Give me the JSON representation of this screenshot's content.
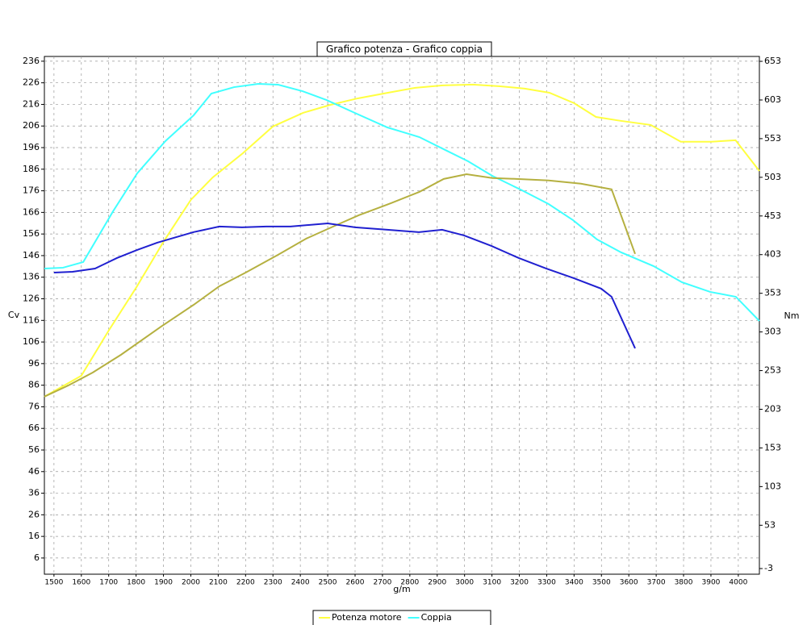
{
  "chart_data": {
    "type": "line",
    "title": "Grafico potenza - Grafico coppia",
    "x_label": "g/m",
    "y_label": "Cv",
    "y2_label": "Nm",
    "grid": true,
    "legend": "bottom",
    "xlim": [
      1465,
      4077
    ],
    "xticks": [
      1500,
      1600,
      1700,
      1800,
      1900,
      2000,
      2100,
      2200,
      2300,
      2400,
      2500,
      2600,
      2700,
      2800,
      2900,
      3000,
      3100,
      3200,
      3300,
      3400,
      3500,
      3600,
      3700,
      3800,
      3900,
      4000
    ],
    "ylim": [
      -1.5,
      238.2
    ],
    "yticks": [
      6,
      16,
      26,
      36,
      46,
      56,
      66,
      76,
      86,
      96,
      106,
      116,
      126,
      136,
      146,
      156,
      166,
      176,
      186,
      196,
      206,
      216,
      226,
      236
    ],
    "y2lim": [
      -10.3,
      659.3
    ],
    "y2ticks": [
      -3,
      53,
      103,
      153,
      203,
      253,
      303,
      353,
      403,
      453,
      503,
      553,
      603,
      653
    ],
    "series": [
      {
        "name": "Potenza motore",
        "color": "#ffff40",
        "x": [
          1465,
          1600,
          1700,
          1800,
          1900,
          2000,
          2080,
          2190,
          2300,
          2410,
          2510,
          2610,
          2720,
          2820,
          2920,
          3030,
          3130,
          3220,
          3310,
          3400,
          3480,
          3570,
          3680,
          3790,
          3900,
          3990,
          4077
        ],
        "values": [
          80.7,
          90.4,
          111.3,
          131.1,
          152.4,
          171.8,
          182.2,
          193.4,
          205.8,
          212.1,
          215.8,
          218.8,
          221.4,
          223.7,
          224.8,
          225.2,
          224.4,
          223.3,
          221.4,
          216.6,
          210.2,
          208.4,
          206.5,
          198.7,
          198.7,
          199.4,
          185.2
        ]
      },
      {
        "name": "Coppia",
        "color": "#40ffff",
        "axis": "y2",
        "x": [
          1465,
          1533,
          1607,
          1716,
          1804,
          1907,
          2010,
          2075,
          2158,
          2246,
          2319,
          2408,
          2496,
          2599,
          2718,
          2835,
          2924,
          3013,
          3101,
          3204,
          3307,
          3396,
          3484,
          3572,
          3690,
          3794,
          3897,
          3991,
          4077
        ],
        "values": [
          385.0,
          386.1,
          393.4,
          459.1,
          508.1,
          549.8,
          583.1,
          611.3,
          619.6,
          623.8,
          622.8,
          614.4,
          602.9,
          586.3,
          567.5,
          555.0,
          539.3,
          523.7,
          504.9,
          487.2,
          468.4,
          447.6,
          422.6,
          405.9,
          388.2,
          367.3,
          354.8,
          348.5,
          317.2
        ]
      },
      {
        "color": "#b5b040",
        "x": [
          1465,
          1553,
          1642,
          1745,
          1892,
          2010,
          2104,
          2201,
          2319,
          2422,
          2526,
          2614,
          2732,
          2835,
          2924,
          3007,
          3101,
          3190,
          3307,
          3425,
          3537,
          3623
        ],
        "values": [
          80.7,
          85.9,
          91.9,
          100.1,
          113.2,
          123.2,
          131.8,
          138.2,
          146.4,
          153.9,
          159.8,
          164.7,
          170.3,
          175.5,
          181.5,
          183.7,
          181.9,
          181.5,
          180.8,
          179.3,
          176.7,
          146.8
        ]
      },
      {
        "color": "#2020d0",
        "axis": "y2",
        "x": [
          1500,
          1568,
          1650,
          1730,
          1804,
          1877,
          2010,
          2104,
          2187,
          2275,
          2364,
          2500,
          2600,
          2718,
          2833,
          2918,
          2998,
          3098,
          3198,
          3298,
          3399,
          3499,
          3537,
          3623
        ],
        "values": [
          379.8,
          380.8,
          385.0,
          398.6,
          409.0,
          418.4,
          432.1,
          439.3,
          438.3,
          439.3,
          439.3,
          443.4,
          438.3,
          435.2,
          432.1,
          435.2,
          427.8,
          414.3,
          398.6,
          385.0,
          372.5,
          359.0,
          348.5,
          281.8
        ]
      }
    ]
  }
}
